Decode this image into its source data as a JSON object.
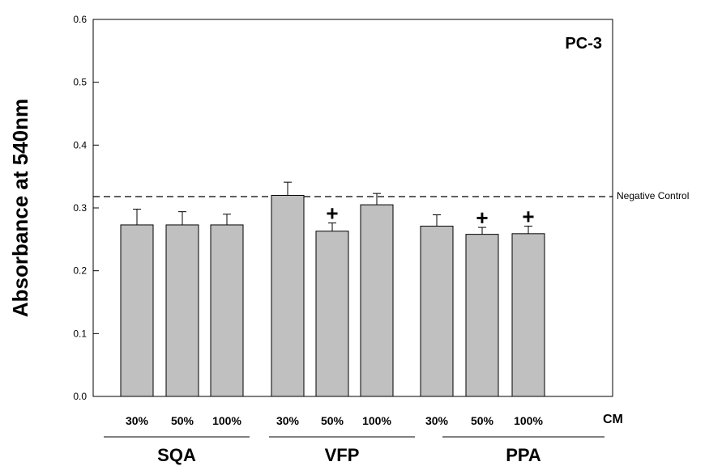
{
  "chart_data": {
    "type": "bar",
    "title": "",
    "panel_label": "PC-3",
    "ylabel": "Absorbance at 540nm",
    "xlabel": "",
    "x_unit_label": "CM",
    "ylim": [
      0,
      0.6
    ],
    "yticks": [
      "0.0",
      "0.1",
      "0.2",
      "0.3",
      "0.4",
      "0.5",
      "0.6"
    ],
    "ytick_values": [
      0,
      0.1,
      0.2,
      0.3,
      0.4,
      0.5,
      0.6
    ],
    "grid": false,
    "colors": {
      "bar": "#c0c0c0",
      "stroke": "#000000"
    },
    "categories": [
      "30%",
      "50%",
      "100%",
      "30%",
      "50%",
      "100%",
      "30%",
      "50%",
      "100%"
    ],
    "values": [
      0.273,
      0.273,
      0.273,
      0.32,
      0.263,
      0.305,
      0.271,
      0.258,
      0.259
    ],
    "errors": [
      0.025,
      0.021,
      0.017,
      0.021,
      0.013,
      0.018,
      0.018,
      0.011,
      0.012
    ],
    "significance": [
      "",
      "",
      "",
      "",
      "+",
      "",
      "",
      "+",
      "+"
    ],
    "groups": [
      {
        "name": "SQA",
        "start": 0,
        "end": 2
      },
      {
        "name": "VFP",
        "start": 3,
        "end": 5
      },
      {
        "name": "PPA",
        "start": 6,
        "end": 8
      }
    ],
    "reference_line": {
      "label": "Negative Control",
      "value": 0.318
    }
  }
}
